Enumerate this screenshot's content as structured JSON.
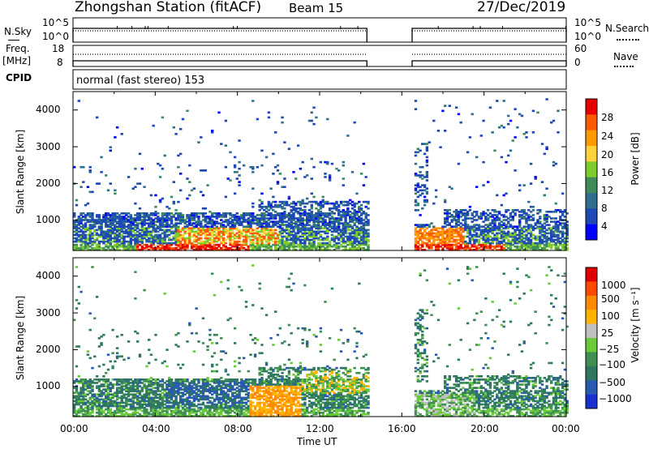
{
  "header": {
    "station": "Zhongshan Station (fitACF)",
    "beam": "Beam 15",
    "date": "27/Dec/2019"
  },
  "meta_panels": {
    "nsky_label": "N.Sky",
    "nsearch_label": "N.Search",
    "freq_label_line1": "Freq.",
    "freq_label_line2": "[MHz]",
    "nave_label": "Nave",
    "cpid_label": "CPID",
    "cpid_text": "normal (fast stereo) 153",
    "noise_left_top": "10^5",
    "noise_left_bottom": "10^0",
    "noise_right_top": "10^5",
    "noise_right_bottom": "10^0",
    "freq_left_top": "18",
    "freq_left_bottom": "8",
    "nave_right_top": "60",
    "nave_right_bottom": "0"
  },
  "chart_data": [
    {
      "type": "heatmap",
      "panel": "power",
      "ylabel": "Slant Range [km]",
      "xlabel": "Time UT",
      "ylim": [
        180,
        4500
      ],
      "yticks": [
        "1000",
        "2000",
        "3000",
        "4000"
      ],
      "xticks": [
        "00:00",
        "04:00",
        "08:00",
        "12:00",
        "16:00",
        "20:00",
        "00:00"
      ],
      "data_gap_hours": [
        14.3,
        16.5
      ],
      "colorbar": {
        "label": "Power [dB]",
        "ticks": [
          "4",
          "8",
          "12",
          "16",
          "20",
          "24",
          "28"
        ],
        "colors": [
          "#0000ff",
          "#1e48b4",
          "#2e6f8e",
          "#3d8c5a",
          "#7fcc2a",
          "#ffd23c",
          "#ff9a00",
          "#ff5a00",
          "#e80000"
        ]
      }
    },
    {
      "type": "heatmap",
      "panel": "velocity",
      "ylabel": "Slant Range [km]",
      "xlabel": "Time UT",
      "ylim": [
        180,
        4500
      ],
      "yticks": [
        "1000",
        "2000",
        "3000",
        "4000"
      ],
      "xticks": [
        "00:00",
        "04:00",
        "08:00",
        "12:00",
        "16:00",
        "20:00",
        "00:00"
      ],
      "data_gap_hours": [
        14.3,
        16.5
      ],
      "colorbar": {
        "label": "Velocity [m s⁻¹]",
        "ticks": [
          "1000",
          "500",
          "100",
          "25",
          "−25",
          "−100",
          "−500",
          "−1000"
        ],
        "colors": [
          "#1a2fd0",
          "#285ab0",
          "#2e7860",
          "#3f8f55",
          "#6acb3a",
          "#c0c0c0",
          "#ffb400",
          "#ff8a00",
          "#ff4a00",
          "#e00000"
        ]
      }
    }
  ]
}
